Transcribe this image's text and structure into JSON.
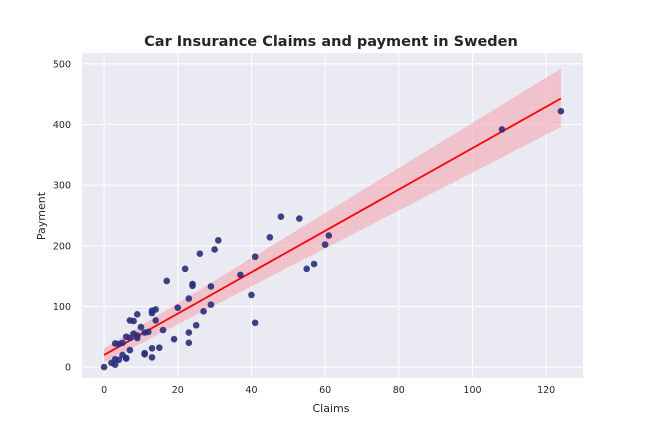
{
  "colors": {
    "plot_background": "#EAEAF2",
    "grid": "#FFFFFF",
    "points": "#2A2D7C",
    "regression_line": "#FF0000",
    "confidence_band": "#F4A6B0"
  },
  "chart_data": {
    "type": "scatter",
    "title": "Car Insurance Claims and payment in Sweden",
    "xlabel": "Claims",
    "ylabel": "Payment",
    "xlim": [
      -6,
      130
    ],
    "ylim": [
      -18,
      518
    ],
    "xticks": [
      0,
      20,
      40,
      60,
      80,
      100,
      120
    ],
    "yticks": [
      0,
      100,
      200,
      300,
      400,
      500
    ],
    "grid": true,
    "points": [
      [
        108,
        392
      ],
      [
        124,
        422
      ],
      [
        61,
        217
      ],
      [
        60,
        202
      ],
      [
        57,
        170
      ],
      [
        55,
        162
      ],
      [
        53,
        245
      ],
      [
        48,
        248
      ],
      [
        45,
        214
      ],
      [
        41,
        182
      ],
      [
        41,
        73
      ],
      [
        40,
        119
      ],
      [
        37,
        152
      ],
      [
        31,
        209
      ],
      [
        30,
        194
      ],
      [
        29,
        133
      ],
      [
        29,
        103
      ],
      [
        27,
        92
      ],
      [
        26,
        187
      ],
      [
        25,
        69
      ],
      [
        24,
        137
      ],
      [
        24,
        134
      ],
      [
        23,
        113
      ],
      [
        23,
        57
      ],
      [
        23,
        40
      ],
      [
        22,
        162
      ],
      [
        20,
        98
      ],
      [
        19,
        46
      ],
      [
        17,
        142
      ],
      [
        16,
        61
      ],
      [
        15,
        32
      ],
      [
        14,
        95
      ],
      [
        14,
        77
      ],
      [
        13,
        93
      ],
      [
        13,
        89
      ],
      [
        13,
        31
      ],
      [
        13,
        16
      ],
      [
        12,
        58
      ],
      [
        11,
        57
      ],
      [
        11,
        23
      ],
      [
        11,
        21
      ],
      [
        10,
        66
      ],
      [
        9,
        87
      ],
      [
        9,
        52
      ],
      [
        9,
        48
      ],
      [
        8,
        76
      ],
      [
        8,
        55
      ],
      [
        7,
        77
      ],
      [
        7,
        48
      ],
      [
        7,
        28
      ],
      [
        6,
        50
      ],
      [
        6,
        15
      ],
      [
        6,
        14
      ],
      [
        5,
        40
      ],
      [
        5,
        20
      ],
      [
        4,
        38
      ],
      [
        4,
        12
      ],
      [
        3,
        39
      ],
      [
        3,
        13
      ],
      [
        3,
        4
      ],
      [
        2,
        7
      ],
      [
        0,
        0
      ]
    ],
    "regression": {
      "x": [
        0,
        124
      ],
      "y": [
        20,
        443
      ],
      "ci_lower": [
        8,
        396
      ],
      "ci_upper": [
        31,
        492
      ]
    }
  }
}
